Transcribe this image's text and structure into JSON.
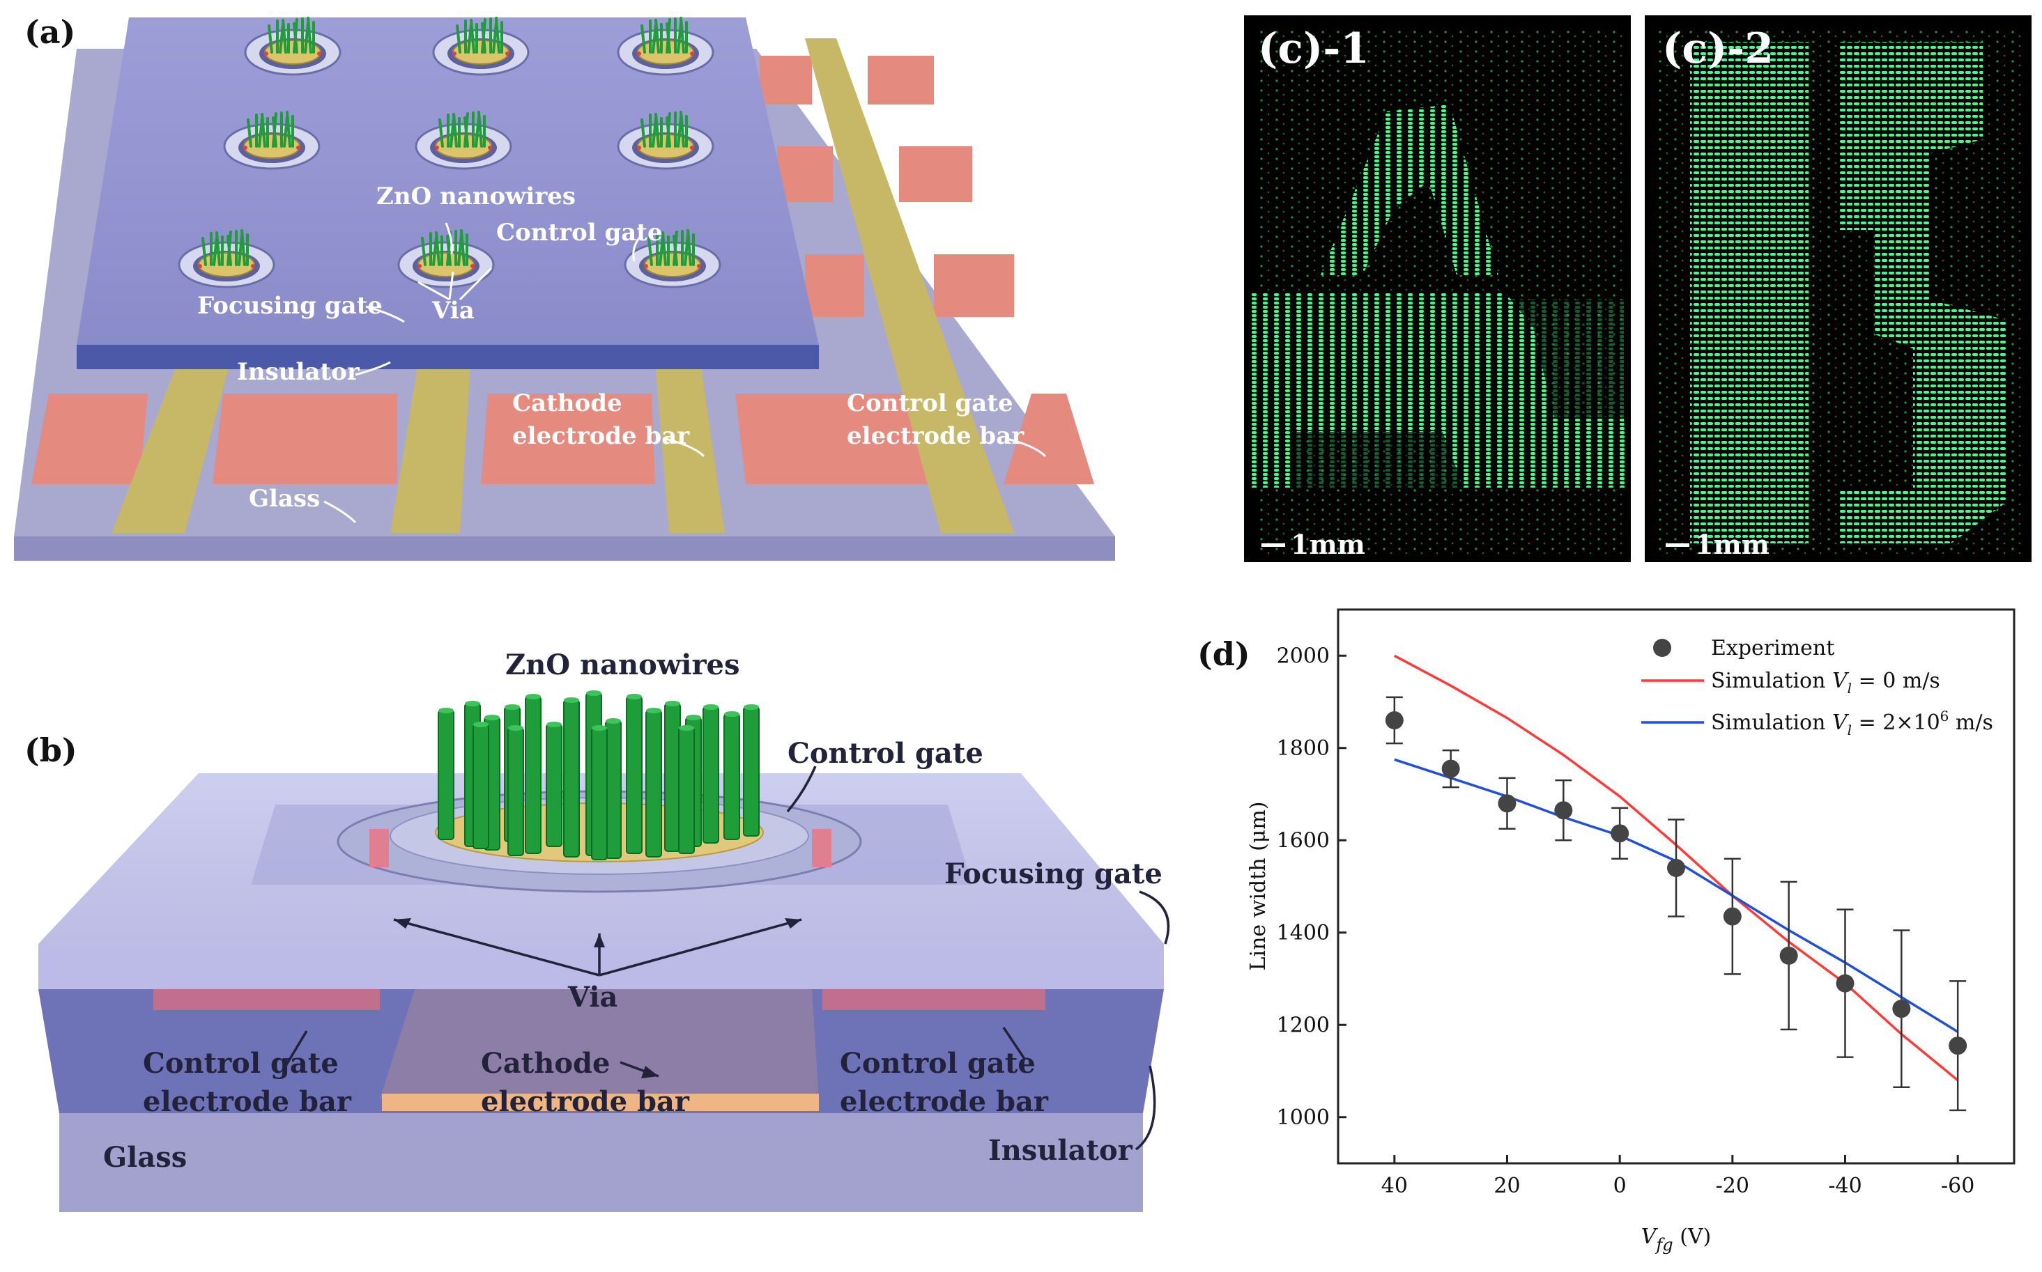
{
  "panel_a": {
    "tag": "(a)",
    "labels": {
      "zno": "ZnO nanowires",
      "control_gate": "Control gate",
      "focusing_gate": "Focusing gate",
      "via": "Via",
      "insulator": "Insulator",
      "cathode_1": "Cathode",
      "cathode_2": "electrode bar",
      "control_bar_1": "Control gate",
      "control_bar_2": "electrode bar",
      "glass": "Glass"
    }
  },
  "panel_b": {
    "tag": "(b)",
    "labels": {
      "zno": "ZnO nanowires",
      "control_gate": "Control gate",
      "focusing_gate": "Focusing gate",
      "via": "Via",
      "control_left_1": "Control gate",
      "control_left_2": "electrode bar",
      "cathode_1": "Cathode",
      "cathode_2": "electrode bar",
      "control_right_1": "Control gate",
      "control_right_2": "electrode bar",
      "glass": "Glass",
      "insulator": "Insulator"
    }
  },
  "panel_c": {
    "left_tag": "(c)-1",
    "right_tag": "(c)-2",
    "scale_left": "1mm",
    "scale_right": "1mm"
  },
  "panel_d": {
    "tag": "(d)"
  },
  "colors": {
    "substrate": "#a9a8cf",
    "focus_plate": "#8e8fd0",
    "electrode_pink": "#e58a7e",
    "electrode_yellow": "#c6b866",
    "nanowire": "#1e9d3a",
    "phosphor": "#3dff8a",
    "simulation_red": "#ff3a3a",
    "simulation_blue": "#2050d8",
    "experiment": "#444444"
  },
  "chart_data": {
    "type": "scatter",
    "xlabel": "V_fg (V)",
    "xlabel_main": "V",
    "xlabel_sub": "fg",
    "xlabel_unit": " (V)",
    "ylabel": "Line width (μm)",
    "xlim": [
      50,
      -70
    ],
    "ylim": [
      900,
      2100
    ],
    "x_ticks": [
      40,
      20,
      0,
      -20,
      -40,
      -60
    ],
    "x_tick_labels": [
      "40",
      "20",
      "0",
      "-20",
      "-40",
      "-60"
    ],
    "y_ticks": [
      1000,
      1200,
      1400,
      1600,
      1800,
      2000
    ],
    "y_tick_labels": [
      "1000",
      "1200",
      "1400",
      "1600",
      "1800",
      "2000"
    ],
    "legend_position": "top-right",
    "series": [
      {
        "name": "Experiment",
        "kind": "scatter",
        "x": [
          40,
          30,
          20,
          10,
          0,
          -10,
          -20,
          -30,
          -40,
          -50,
          -60
        ],
        "y": [
          1860,
          1755,
          1680,
          1665,
          1615,
          1540,
          1435,
          1350,
          1290,
          1235,
          1155
        ],
        "yerr": [
          50,
          40,
          55,
          65,
          55,
          105,
          125,
          160,
          160,
          170,
          140
        ]
      },
      {
        "name": "Simulation V_l = 0 m/s",
        "legend_main": "Simulation ",
        "legend_var": "V",
        "legend_sub": "l",
        "legend_rest": " = 0 m/s",
        "kind": "line",
        "x": [
          40,
          30,
          20,
          10,
          0,
          -10,
          -20,
          -30,
          -40,
          -50,
          -60
        ],
        "y": [
          2000,
          1935,
          1865,
          1785,
          1695,
          1590,
          1480,
          1380,
          1290,
          1180,
          1080
        ]
      },
      {
        "name": "Simulation V_l = 2×10^6 m/s",
        "legend_main": "Simulation ",
        "legend_var": "V",
        "legend_sub": "l",
        "legend_rest": " = 2×10",
        "legend_sup": "6",
        "legend_tail": " m/s",
        "kind": "line",
        "x": [
          40,
          30,
          20,
          10,
          0,
          -10,
          -20,
          -30,
          -40,
          -50,
          -60
        ],
        "y": [
          1775,
          1735,
          1695,
          1650,
          1610,
          1555,
          1480,
          1405,
          1335,
          1260,
          1185
        ]
      }
    ]
  }
}
